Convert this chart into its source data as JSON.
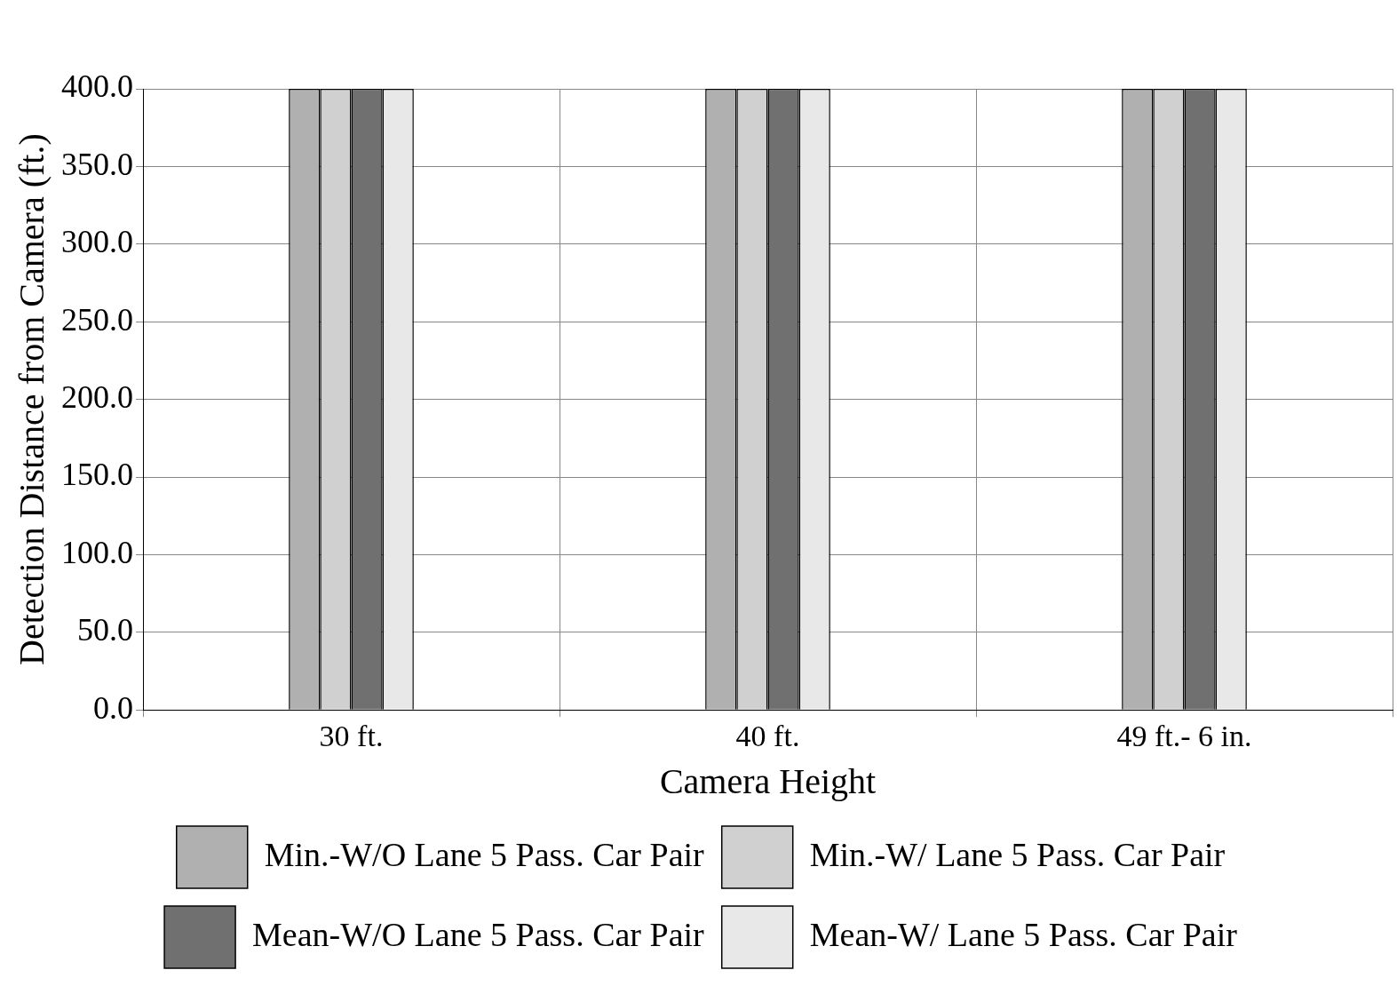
{
  "chart_data": {
    "type": "bar",
    "xlabel": "Camera Height",
    "ylabel": "Detection Distance from Camera (ft.)",
    "categories": [
      "30 ft.",
      "40 ft.",
      "49 ft.- 6 in."
    ],
    "series": [
      {
        "name": "Min.-W/O Lane 5 Pass. Car Pair",
        "color": "#b0b0b0",
        "values": [
          400,
          400,
          400
        ]
      },
      {
        "name": "Min.-W/ Lane 5 Pass. Car Pair",
        "color": "#d0d0d0",
        "values": [
          400,
          400,
          400
        ]
      },
      {
        "name": "Mean-W/O Lane 5 Pass. Car Pair",
        "color": "#707070",
        "values": [
          400,
          400,
          400
        ]
      },
      {
        "name": "Mean-W/ Lane 5 Pass. Car Pair",
        "color": "#e8e8e8",
        "values": [
          400,
          400,
          400
        ]
      }
    ],
    "ylim": [
      0,
      400
    ],
    "yticks": [
      {
        "value": 0,
        "label": "0.0"
      },
      {
        "value": 50,
        "label": "50.0"
      },
      {
        "value": 100,
        "label": "100.0"
      },
      {
        "value": 150,
        "label": "150.0"
      },
      {
        "value": 200,
        "label": "200.0"
      },
      {
        "value": 250,
        "label": "250.0"
      },
      {
        "value": 300,
        "label": "300.0"
      },
      {
        "value": 350,
        "label": "350.0"
      },
      {
        "value": 400,
        "label": "400.0"
      }
    ],
    "grid": true,
    "legend": "bottom"
  }
}
